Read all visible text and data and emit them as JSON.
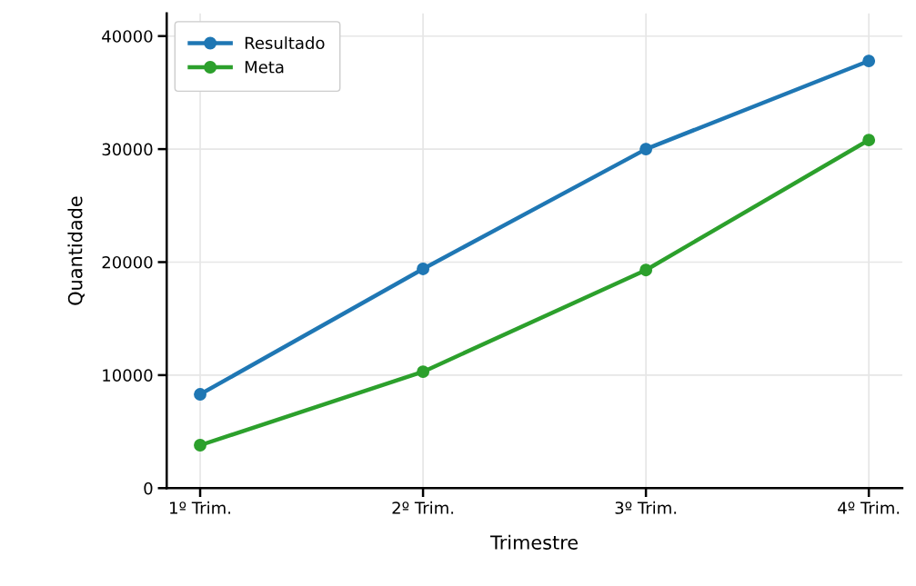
{
  "chart_data": {
    "type": "line",
    "xlabel": "Trimestre",
    "ylabel": "Quantidade",
    "categories": [
      "1º Trim.",
      "2º Trim.",
      "3º Trim.",
      "4º Trim."
    ],
    "series": [
      {
        "name": "Resultado",
        "color": "#1f77b4",
        "values": [
          8300,
          19400,
          30000,
          37800
        ]
      },
      {
        "name": "Meta",
        "color": "#2ca02c",
        "values": [
          3800,
          10300,
          19300,
          30800
        ]
      }
    ],
    "ylim": [
      0,
      42000
    ],
    "yticks": [
      0,
      10000,
      20000,
      30000,
      40000
    ],
    "grid": true,
    "legend": "top left",
    "marker": "circle",
    "line_style": "solid"
  }
}
